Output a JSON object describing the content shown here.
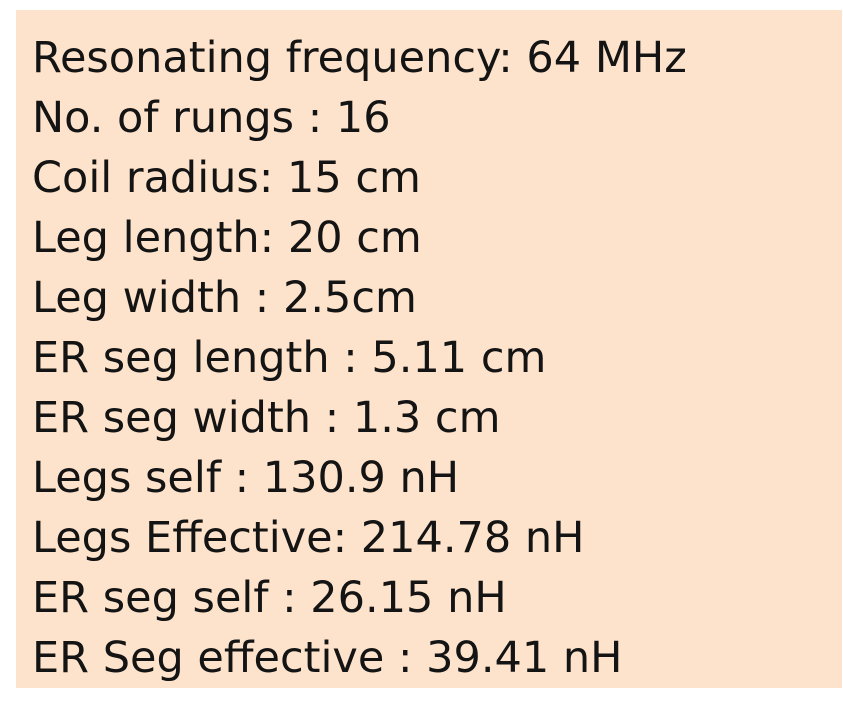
{
  "panel": {
    "background_color": "#fde3cc",
    "text_color": "#141414",
    "lines": [
      "Resonating frequency: 64 MHz",
      "No. of rungs : 16",
      "Coil radius: 15 cm",
      "Leg length: 20 cm",
      "Leg width : 2.5cm",
      "ER seg length : 5.11 cm",
      "ER seg width : 1.3 cm",
      "Legs self : 130.9 nH",
      "Legs Effective: 214.78 nH",
      "ER seg self : 26.15 nH",
      "ER Seg effective : 39.41 nH"
    ]
  }
}
